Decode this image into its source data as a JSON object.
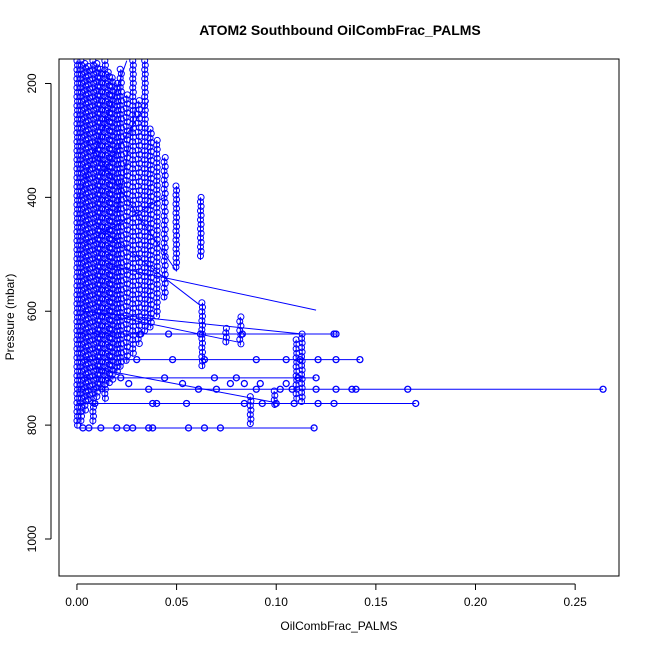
{
  "chart_data": {
    "type": "scatter",
    "title": "ATOM2 Southbound OilCombFrac_PALMS",
    "xlabel": "OilCombFrac_PALMS",
    "ylabel": "Pressure (mbar)",
    "xlim": [
      -0.009,
      0.272
    ],
    "ylim": [
      1065,
      157
    ],
    "y_reversed": true,
    "grid": false,
    "legend": "none",
    "x_ticks": [
      0.0,
      0.05,
      0.1,
      0.15,
      0.2,
      0.25
    ],
    "x_tick_labels": [
      "0.00",
      "0.05",
      "0.10",
      "0.15",
      "0.20",
      "0.25"
    ],
    "y_ticks": [
      200,
      400,
      600,
      800,
      1000
    ],
    "y_tick_labels": [
      "200",
      "400",
      "600",
      "800",
      "1000"
    ],
    "marker": "open-circle",
    "series_color": "#0000ff",
    "columns": [
      {
        "x": 0.0,
        "p": [
          160,
          805
        ]
      },
      {
        "x": 0.002,
        "p": [
          160,
          800
        ]
      },
      {
        "x": 0.004,
        "p": [
          165,
          780
        ]
      },
      {
        "x": 0.006,
        "p": [
          170,
          760
        ]
      },
      {
        "x": 0.008,
        "p": [
          160,
          800
        ]
      },
      {
        "x": 0.01,
        "p": [
          165,
          750
        ]
      },
      {
        "x": 0.012,
        "p": [
          175,
          740
        ]
      },
      {
        "x": 0.014,
        "p": [
          160,
          760
        ]
      },
      {
        "x": 0.016,
        "p": [
          180,
          730
        ]
      },
      {
        "x": 0.018,
        "p": [
          190,
          720
        ]
      },
      {
        "x": 0.02,
        "p": [
          200,
          710
        ]
      },
      {
        "x": 0.022,
        "p": [
          175,
          700
        ]
      },
      {
        "x": 0.025,
        "p": [
          220,
          690
        ]
      },
      {
        "x": 0.028,
        "p": [
          160,
          680
        ]
      },
      {
        "x": 0.031,
        "p": [
          230,
          660
        ]
      },
      {
        "x": 0.034,
        "p": [
          160,
          640
        ]
      },
      {
        "x": 0.037,
        "p": [
          280,
          630
        ]
      },
      {
        "x": 0.04,
        "p": [
          300,
          610
        ]
      },
      {
        "x": 0.044,
        "p": [
          330,
          580
        ]
      },
      {
        "x": 0.05,
        "p": [
          380,
          530
        ]
      },
      {
        "x": 0.062,
        "p": [
          400,
          510
        ]
      },
      {
        "x": 0.063,
        "p": [
          585,
          700
        ]
      },
      {
        "x": 0.075,
        "p": [
          630,
          660
        ]
      },
      {
        "x": 0.082,
        "p": [
          610,
          660
        ]
      },
      {
        "x": 0.087,
        "p": [
          750,
          800
        ]
      },
      {
        "x": 0.099,
        "p": [
          740,
          770
        ]
      },
      {
        "x": 0.11,
        "p": [
          650,
          760
        ]
      },
      {
        "x": 0.113,
        "p": [
          640,
          760
        ]
      }
    ],
    "levels": [
      {
        "p": 640,
        "x": [
          0.0,
          0.13
        ]
      },
      {
        "p": 685,
        "x": [
          0.0,
          0.142
        ]
      },
      {
        "p": 717,
        "x": [
          0.0,
          0.12
        ]
      },
      {
        "p": 737,
        "x": [
          0.0,
          0.264
        ]
      },
      {
        "p": 762,
        "x": [
          0.0,
          0.17
        ]
      },
      {
        "p": 805,
        "x": [
          0.0,
          0.119
        ]
      }
    ],
    "level_points": [
      {
        "p": 640,
        "x": [
          0.032,
          0.046,
          0.062,
          0.083,
          0.129,
          0.13
        ]
      },
      {
        "p": 685,
        "x": [
          0.03,
          0.048,
          0.064,
          0.09,
          0.105,
          0.112,
          0.121,
          0.13,
          0.142
        ]
      },
      {
        "p": 717,
        "x": [
          0.022,
          0.044,
          0.069,
          0.08,
          0.111,
          0.12
        ]
      },
      {
        "p": 727,
        "x": [
          0.026,
          0.053,
          0.077,
          0.084,
          0.092,
          0.105
        ]
      },
      {
        "p": 737,
        "x": [
          0.036,
          0.061,
          0.07,
          0.09,
          0.102,
          0.108,
          0.12,
          0.13,
          0.138,
          0.14,
          0.166,
          0.264
        ]
      },
      {
        "p": 762,
        "x": [
          0.009,
          0.038,
          0.04,
          0.055,
          0.084,
          0.093,
          0.1,
          0.109,
          0.121,
          0.129,
          0.17
        ]
      },
      {
        "p": 805,
        "x": [
          0.003,
          0.006,
          0.012,
          0.02,
          0.025,
          0.028,
          0.036,
          0.038,
          0.056,
          0.064,
          0.072,
          0.119
        ]
      }
    ],
    "connectors": [
      {
        "x1": 0.005,
        "p1": 300,
        "x2": 0.05,
        "p2": 530
      },
      {
        "x1": 0.01,
        "p1": 450,
        "x2": 0.062,
        "p2": 590
      },
      {
        "x1": 0.016,
        "p1": 520,
        "x2": 0.12,
        "p2": 598
      },
      {
        "x1": 0.003,
        "p1": 600,
        "x2": 0.113,
        "p2": 640
      },
      {
        "x1": 0.012,
        "p1": 360,
        "x2": 0.036,
        "p2": 230
      },
      {
        "x1": 0.02,
        "p1": 610,
        "x2": 0.082,
        "p2": 655
      },
      {
        "x1": 0.008,
        "p1": 700,
        "x2": 0.099,
        "p2": 760
      },
      {
        "x1": 0.03,
        "p1": 230,
        "x2": 0.02,
        "p2": 430
      },
      {
        "x1": 0.004,
        "p1": 480,
        "x2": 0.044,
        "p2": 400
      },
      {
        "x1": 0.025,
        "p1": 160,
        "x2": 0.001,
        "p2": 400
      }
    ]
  }
}
